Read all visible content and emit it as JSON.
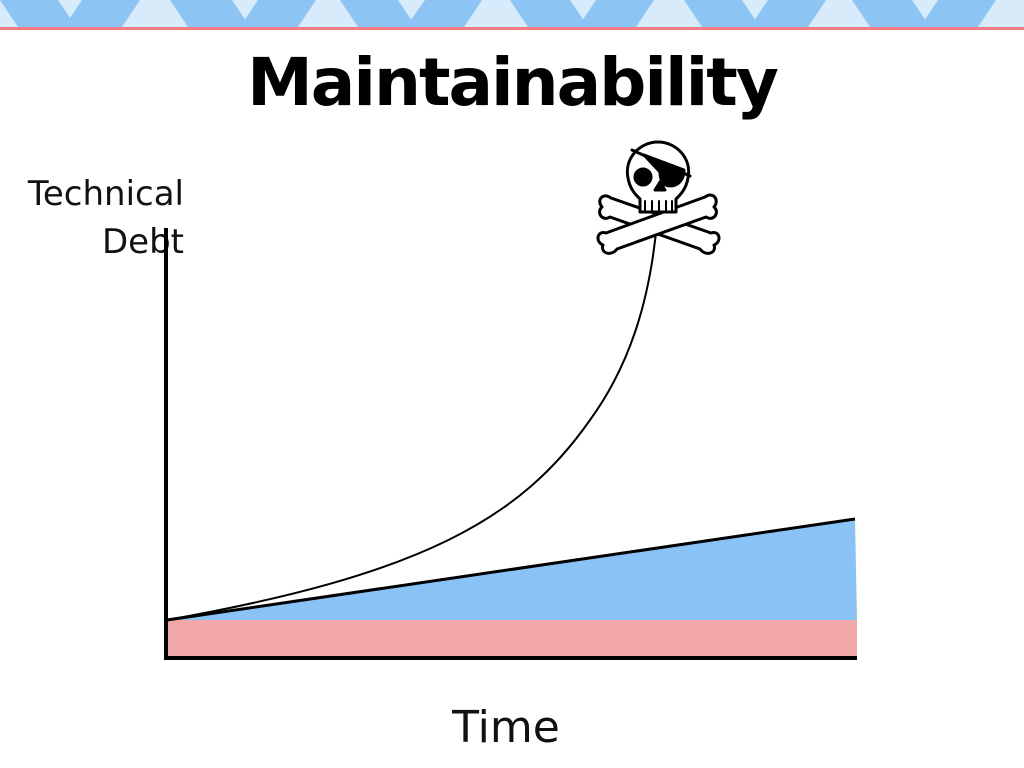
{
  "title": "Maintainability",
  "colors": {
    "banner_light": "#d8ebfb",
    "banner_blue": "#8cc4f4",
    "banner_line": "#ef7c82",
    "baseline_band": "#f2a7a8",
    "linear_area": "#89c2f5",
    "axis": "#000000",
    "curve": "#000000"
  },
  "chart_data": {
    "type": "area",
    "xlabel": "Time",
    "ylabel_lines": [
      "Technical",
      "Debt"
    ],
    "x_ticks": "none",
    "y_ticks": "none",
    "grid": false,
    "annotations": [
      {
        "kind": "icon",
        "name": "skull-and-crossbones-icon",
        "attached_to": "exponential-curve end"
      }
    ],
    "series": [
      {
        "kind": "baseline-band",
        "shape": "constant",
        "color": "#f2a7a8"
      },
      {
        "kind": "linear-area",
        "shape": "linear growth",
        "color": "#89c2f5"
      },
      {
        "kind": "exponential-curve",
        "shape": "exponential growth",
        "color": "#000000"
      }
    ]
  }
}
